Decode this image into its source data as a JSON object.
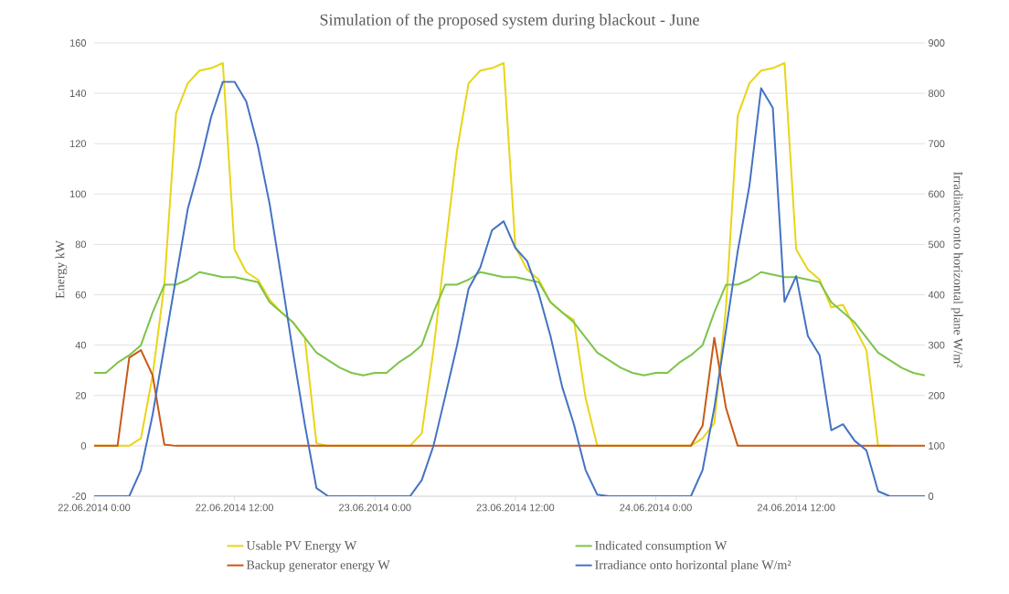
{
  "chart_data": {
    "type": "line",
    "title": "Simulation of the proposed system during blackout - June",
    "ylabel": "Energy  kW",
    "y2label": "Irradiance onto horizontal plane  W/m²",
    "x": [
      "2014-06-22T00:00",
      "2014-06-22T01:00",
      "2014-06-22T02:00",
      "2014-06-22T03:00",
      "2014-06-22T04:00",
      "2014-06-22T05:00",
      "2014-06-22T06:00",
      "2014-06-22T07:00",
      "2014-06-22T08:00",
      "2014-06-22T09:00",
      "2014-06-22T10:00",
      "2014-06-22T11:00",
      "2014-06-22T12:00",
      "2014-06-22T13:00",
      "2014-06-22T14:00",
      "2014-06-22T15:00",
      "2014-06-22T16:00",
      "2014-06-22T17:00",
      "2014-06-22T18:00",
      "2014-06-22T19:00",
      "2014-06-22T20:00",
      "2014-06-22T21:00",
      "2014-06-22T22:00",
      "2014-06-22T23:00",
      "2014-06-23T00:00",
      "2014-06-23T01:00",
      "2014-06-23T02:00",
      "2014-06-23T03:00",
      "2014-06-23T04:00",
      "2014-06-23T05:00",
      "2014-06-23T06:00",
      "2014-06-23T07:00",
      "2014-06-23T08:00",
      "2014-06-23T09:00",
      "2014-06-23T10:00",
      "2014-06-23T11:00",
      "2014-06-23T12:00",
      "2014-06-23T13:00",
      "2014-06-23T14:00",
      "2014-06-23T15:00",
      "2014-06-23T16:00",
      "2014-06-23T17:00",
      "2014-06-23T18:00",
      "2014-06-23T19:00",
      "2014-06-23T20:00",
      "2014-06-23T21:00",
      "2014-06-23T22:00",
      "2014-06-23T23:00",
      "2014-06-24T00:00",
      "2014-06-24T01:00",
      "2014-06-24T02:00",
      "2014-06-24T03:00",
      "2014-06-24T04:00",
      "2014-06-24T05:00",
      "2014-06-24T06:00",
      "2014-06-24T07:00",
      "2014-06-24T08:00",
      "2014-06-24T09:00",
      "2014-06-24T10:00",
      "2014-06-24T11:00",
      "2014-06-24T12:00",
      "2014-06-24T13:00",
      "2014-06-24T14:00",
      "2014-06-24T15:00",
      "2014-06-24T16:00",
      "2014-06-24T17:00",
      "2014-06-24T18:00",
      "2014-06-24T19:00",
      "2014-06-24T20:00",
      "2014-06-24T21:00",
      "2014-06-24T22:00",
      "2014-06-24T23:00"
    ],
    "xlim": [
      "2014-06-22T00:00",
      "2014-06-24T23:00"
    ],
    "xticks": [
      {
        "value": "2014-06-22T00:00",
        "label": "22.06.2014 0:00"
      },
      {
        "value": "2014-06-22T12:00",
        "label": "22.06.2014 12:00"
      },
      {
        "value": "2014-06-23T00:00",
        "label": "23.06.2014 0:00"
      },
      {
        "value": "2014-06-23T12:00",
        "label": "23.06.2014 12:00"
      },
      {
        "value": "2014-06-24T00:00",
        "label": "24.06.2014 0:00"
      },
      {
        "value": "2014-06-24T12:00",
        "label": "24.06.2014 12:00"
      }
    ],
    "ylim": [
      -20,
      160
    ],
    "yticks": [
      -20,
      0,
      20,
      40,
      60,
      80,
      100,
      120,
      140,
      160
    ],
    "y2lim": [
      0,
      900
    ],
    "y2ticks": [
      0,
      100,
      200,
      300,
      400,
      500,
      600,
      700,
      800,
      900
    ],
    "grid": "y",
    "legend": "bottom",
    "marker": "none",
    "series": [
      {
        "name": "Usable PV Energy  W",
        "color": "#e8d516",
        "values": [
          0,
          0,
          0,
          0,
          3,
          28,
          64,
          132,
          144,
          149,
          150,
          152,
          78,
          69,
          66,
          58,
          53,
          49,
          43,
          1,
          0,
          0,
          0,
          0,
          0,
          0,
          0,
          0,
          5,
          38,
          78,
          117,
          144,
          149,
          150,
          152,
          79,
          70,
          66,
          57,
          53,
          50,
          19,
          0,
          0,
          0,
          0,
          0,
          0,
          0,
          0,
          0,
          3,
          9,
          55,
          131,
          144,
          149,
          150,
          152,
          78,
          70,
          66,
          55,
          56,
          47,
          38,
          0,
          0,
          null,
          null,
          null
        ]
      },
      {
        "name": "Indicated consumption  W",
        "color": "#7dc44a",
        "values": [
          29,
          29,
          33,
          36,
          40,
          53,
          64,
          64,
          66,
          69,
          68,
          67,
          67,
          66,
          65,
          57,
          53,
          49,
          43,
          37,
          34,
          31,
          29,
          28,
          29,
          29,
          33,
          36,
          40,
          53,
          64,
          64,
          66,
          69,
          68,
          67,
          67,
          66,
          65,
          57,
          53,
          49,
          43,
          37,
          34,
          31,
          29,
          28,
          29,
          29,
          33,
          36,
          40,
          53,
          64,
          64,
          66,
          69,
          68,
          67,
          67,
          66,
          65,
          57,
          53,
          49,
          43,
          37,
          34,
          31,
          29,
          28
        ]
      },
      {
        "name": "Backup generator energy  W",
        "color": "#c85a17",
        "values": [
          0,
          0,
          0,
          35,
          38,
          28,
          0.5,
          0,
          0,
          0,
          0,
          0,
          0,
          0,
          0,
          0,
          0,
          0,
          0,
          0,
          0,
          0,
          0,
          0,
          0,
          0,
          0,
          0,
          0,
          0,
          0,
          0,
          0,
          0,
          0,
          0,
          0,
          0,
          0,
          0,
          0,
          0,
          0,
          0,
          0,
          0,
          0,
          0,
          0,
          0,
          0,
          0,
          8,
          43,
          15,
          0,
          0,
          0,
          0,
          0,
          0,
          0,
          0,
          0,
          0,
          0,
          0,
          0,
          0,
          0,
          0,
          0
        ]
      },
      {
        "name": "Irradiance onto horizontal plane  W/m²",
        "color": "#4472c4",
        "axis": "y2",
        "values": [
          0,
          0,
          0,
          0,
          52,
          162,
          298,
          434,
          570,
          655,
          753,
          823,
          823,
          784,
          695,
          580,
          434,
          285,
          143,
          16,
          0,
          0,
          0,
          0,
          0,
          0,
          0,
          0,
          32,
          100,
          198,
          298,
          412,
          454,
          528,
          546,
          493,
          467,
          402,
          318,
          217,
          143,
          52,
          3,
          0,
          0,
          0,
          0,
          0,
          0,
          0,
          0,
          52,
          175,
          330,
          486,
          616,
          810,
          771,
          386,
          437,
          318,
          280,
          131,
          143,
          110,
          91,
          10,
          0,
          0,
          0,
          0
        ]
      }
    ]
  }
}
